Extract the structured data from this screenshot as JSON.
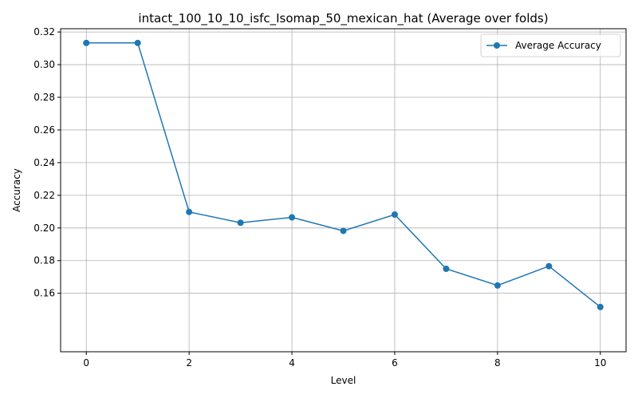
{
  "chart_data": {
    "type": "line",
    "title": "intact_100_10_10_isfc_Isomap_50_mexican_hat (Average over folds)",
    "xlabel": "Level",
    "ylabel": "Accuracy",
    "xlim": [
      -0.5,
      10.5
    ],
    "ylim": [
      0.1242,
      0.322
    ],
    "xticks": [
      0,
      2,
      4,
      6,
      8,
      10
    ],
    "xtick_labels": [
      "0",
      "2",
      "4",
      "6",
      "8",
      "10"
    ],
    "yticks": [
      0.16,
      0.18,
      0.2,
      0.22,
      0.24,
      0.26,
      0.28,
      0.3,
      0.32
    ],
    "ytick_labels": [
      "0.16",
      "0.18",
      "0.20",
      "0.22",
      "0.24",
      "0.26",
      "0.28",
      "0.30",
      "0.32"
    ],
    "grid": true,
    "legend_position": "top-right",
    "series": [
      {
        "name": "Average Accuracy",
        "color": "#1f77b4",
        "marker": "circle",
        "x": [
          0,
          1,
          2,
          3,
          4,
          5,
          6,
          7,
          8,
          9,
          10
        ],
        "y": [
          0.3133,
          0.3133,
          0.2098,
          0.2032,
          0.2065,
          0.1982,
          0.2082,
          0.175,
          0.1648,
          0.1766,
          0.1516
        ]
      }
    ]
  }
}
